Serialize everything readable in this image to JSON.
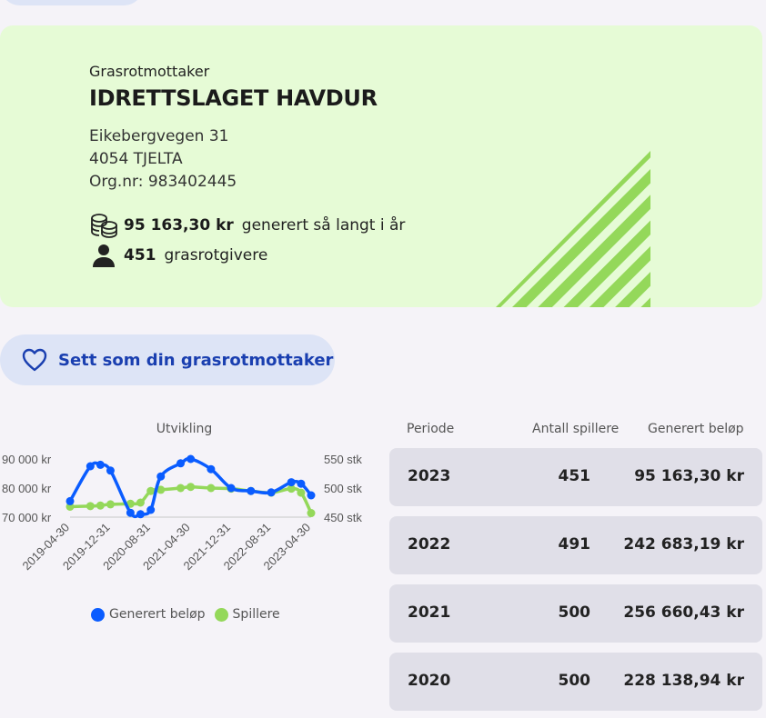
{
  "header": {
    "kicker": "Grasrotmottaker",
    "name": "IDRETTSLAGET HAVDUR"
  },
  "address": {
    "street": "Eikebergvegen 31",
    "postal": "4054 TJELTA",
    "orgnr": "Org.nr: 983402445"
  },
  "stats": {
    "amount": "95 163,30 kr",
    "amount_text": "generert så langt i år",
    "givers": "451",
    "givers_text": "grasrotgivere",
    "coins_icon": "coins-icon",
    "person_icon": "person-icon"
  },
  "favorite_button": {
    "label": "Sett som din grasrotmottaker",
    "icon": "heart-icon"
  },
  "colors": {
    "blue": "#0a5cff",
    "green": "#94d85a",
    "card_bg": "#e6fbd6",
    "button_text": "#1a3fb0"
  },
  "chart_data": {
    "type": "line",
    "title": "Utvikling",
    "x": [
      "2019-04-30",
      "2019-08-31",
      "2019-10-31",
      "2019-12-31",
      "2020-04-30",
      "2020-06-30",
      "2020-08-31",
      "2020-10-31",
      "2021-02-28",
      "2021-04-30",
      "2021-08-31",
      "2021-12-31",
      "2022-04-30",
      "2022-08-31",
      "2022-12-31",
      "2023-02-28",
      "2023-04-30"
    ],
    "x_tick_labels": [
      "2019-04-30",
      "2019-12-31",
      "2020-08-31",
      "2021-04-30",
      "2021-12-31",
      "2022-08-31",
      "2023-04-30"
    ],
    "series": [
      {
        "name": "Generert beløp",
        "axis": "left",
        "values": [
          75500,
          87500,
          88000,
          86000,
          71500,
          71000,
          72500,
          84000,
          88500,
          90000,
          86500,
          80000,
          79000,
          78500,
          82000,
          81500,
          77500
        ]
      },
      {
        "name": "Spillere",
        "axis": "right",
        "values": [
          468,
          469,
          470,
          472,
          473,
          475,
          495,
          497,
          500,
          502,
          500,
          499,
          495,
          492,
          499,
          492,
          457
        ]
      }
    ],
    "y_left": {
      "ticks": [
        "90 000 kr",
        "80 000 kr",
        "70 000 kr"
      ],
      "range": [
        70000,
        90000
      ]
    },
    "y_right": {
      "ticks": [
        "550 stk",
        "500 stk",
        "450 stk"
      ],
      "range": [
        450,
        550
      ]
    },
    "legend": "bottom"
  },
  "table": {
    "headers": [
      "Periode",
      "Antall spillere",
      "Generert beløp"
    ],
    "rows": [
      {
        "period": "2023",
        "players": "451",
        "amount": "95 163,30 kr"
      },
      {
        "period": "2022",
        "players": "491",
        "amount": "242 683,19 kr"
      },
      {
        "period": "2021",
        "players": "500",
        "amount": "256 660,43 kr"
      },
      {
        "period": "2020",
        "players": "500",
        "amount": "228 138,94 kr"
      }
    ]
  }
}
